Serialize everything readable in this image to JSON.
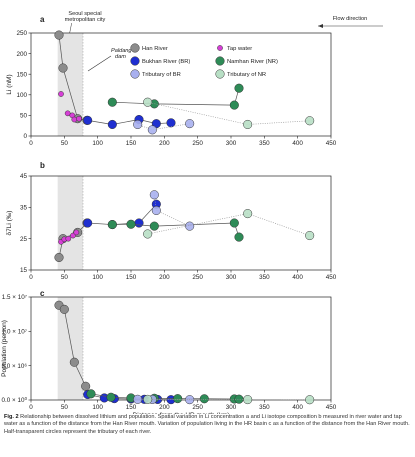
{
  "caption": {
    "fig_label": "Fig. 2",
    "text": "Relationship between dissolved lithium and population. Spatial variation in Li concentration a and Li isotope composition b measured in river water and tap water as a function of the distance from the Han River mouth. Variation of population living in the HR basin c as a function of the distance from the Han River mouth. Half-transparent circles represent the tributary of each river."
  },
  "annotations": {
    "seoul": [
      "Seoul special",
      "metropolitan city"
    ],
    "dam": [
      "Paldang",
      "dam"
    ],
    "flow": "Flow direction"
  },
  "colors": {
    "han": "#8c8c8c",
    "tap": "#d63fd6",
    "bukhan": "#1f2fd0",
    "namhan": "#2e8b57",
    "trib_br": "#a9b0ee",
    "trib_nr": "#b8dfc5",
    "seoul_band": "#e4e4e4"
  },
  "legend": [
    {
      "label": "Han River",
      "color": "#8c8c8c"
    },
    {
      "label": "Tap water",
      "color": "#d63fd6"
    },
    {
      "label": "Bukhan River (BR)",
      "color": "#1f2fd0"
    },
    {
      "label": "Namhan River (NR)",
      "color": "#2e8b57"
    },
    {
      "label": "Tributary of BR",
      "color": "#a9b0ee"
    },
    {
      "label": "Tributary of NR",
      "color": "#b8dfc5"
    }
  ],
  "chart_data": [
    {
      "panel": "a",
      "type": "scatter",
      "xlabel": "",
      "ylabel": "Li (nM)",
      "xlim": [
        0,
        450
      ],
      "ylim": [
        0,
        250
      ],
      "xticks": [
        "0",
        "50",
        "100",
        "150",
        "200",
        "250",
        "300",
        "350",
        "400",
        "450"
      ],
      "yticks": [
        "0",
        "50",
        "100",
        "150",
        "200",
        "250"
      ],
      "band": [
        40,
        78
      ],
      "series": [
        {
          "name": "Han River",
          "line": "solid",
          "color": "#8c8c8c",
          "x": [
            42,
            48,
            70,
            84
          ],
          "y": [
            245,
            165,
            42,
            38
          ]
        },
        {
          "name": "Tap water",
          "line": "none",
          "color": "#d63fd6",
          "x": [
            45,
            55,
            62,
            65,
            72
          ],
          "y": [
            102,
            55,
            50,
            40,
            42
          ]
        },
        {
          "name": "Bukhan River (BR)",
          "line": "solid",
          "color": "#1f2fd0",
          "x": [
            85,
            122,
            162,
            188,
            210
          ],
          "y": [
            38,
            28,
            40,
            30,
            32
          ]
        },
        {
          "name": "Namhan River (NR)",
          "line": "solid",
          "color": "#2e8b57",
          "x": [
            122,
            185,
            305,
            312
          ],
          "y": [
            82,
            78,
            75,
            116
          ]
        },
        {
          "name": "Tributary of BR",
          "line": "dotted",
          "color": "#a9b0ee",
          "x": [
            160,
            182,
            238
          ],
          "y": [
            28,
            15,
            30
          ]
        },
        {
          "name": "Tributary of NR",
          "line": "dotted",
          "color": "#b8dfc5",
          "x": [
            175,
            325,
            418
          ],
          "y": [
            82,
            28,
            37
          ]
        }
      ]
    },
    {
      "panel": "b",
      "type": "scatter",
      "xlabel": "",
      "ylabel": "δ7Li (‰)",
      "xlim": [
        0,
        450
      ],
      "ylim": [
        15,
        45
      ],
      "xticks": [
        "0",
        "50",
        "100",
        "150",
        "200",
        "250",
        "300",
        "350",
        "400",
        "450"
      ],
      "yticks": [
        "15",
        "25",
        "35",
        "45"
      ],
      "band": [
        40,
        78
      ],
      "series": [
        {
          "name": "Han River",
          "line": "solid",
          "color": "#8c8c8c",
          "x": [
            42,
            48,
            70,
            84
          ],
          "y": [
            19,
            25,
            27,
            30
          ]
        },
        {
          "name": "Tap water",
          "line": "none",
          "color": "#d63fd6",
          "x": [
            45,
            50,
            56,
            63,
            68
          ],
          "y": [
            24,
            24.8,
            25,
            26,
            27
          ]
        },
        {
          "name": "Bukhan River (BR)",
          "line": "solid",
          "color": "#1f2fd0",
          "x": [
            85,
            122,
            162,
            188
          ],
          "y": [
            30,
            29.5,
            30,
            36
          ]
        },
        {
          "name": "Namhan River (NR)",
          "line": "solid",
          "color": "#2e8b57",
          "x": [
            122,
            150,
            185,
            305,
            312
          ],
          "y": [
            29.5,
            29.6,
            29,
            30,
            25.5
          ]
        },
        {
          "name": "Tributary of BR",
          "line": "dotted",
          "color": "#a9b0ee",
          "x": [
            185,
            188,
            238
          ],
          "y": [
            39,
            34,
            29
          ]
        },
        {
          "name": "Tributary of NR",
          "line": "dotted",
          "color": "#b8dfc5",
          "x": [
            175,
            325,
            418
          ],
          "y": [
            26.5,
            33,
            26
          ]
        }
      ]
    },
    {
      "panel": "c",
      "type": "line",
      "xlabel": "Distance from the HR mouth (km)",
      "ylabel": "Population (person)",
      "xlim": [
        0,
        450
      ],
      "ylim": [
        0,
        15000000
      ],
      "xticks": [
        "0",
        "50",
        "100",
        "150",
        "200",
        "250",
        "300",
        "350",
        "400",
        "450"
      ],
      "yticks": [
        "0.0 × 10⁰",
        "5.0 × 10⁶",
        "1.0 × 10⁷",
        "1.5 × 10⁷"
      ],
      "band": [
        40,
        78
      ],
      "series": [
        {
          "name": "Han River",
          "line": "solid",
          "color": "#8c8c8c",
          "x": [
            42,
            50,
            65,
            82
          ],
          "y": [
            13800000,
            13200000,
            5500000,
            2000000
          ]
        },
        {
          "name": "Bukhan River (BR)",
          "line": "solid",
          "color": "#1f2fd0",
          "x": [
            85,
            110,
            125,
            150,
            170,
            190,
            210
          ],
          "y": [
            800000,
            300000,
            200000,
            150000,
            100000,
            80000,
            50000
          ]
        },
        {
          "name": "Namhan River (NR)",
          "line": "solid",
          "color": "#2e8b57",
          "x": [
            90,
            120,
            150,
            185,
            220,
            260,
            305,
            312
          ],
          "y": [
            900000,
            400000,
            300000,
            250000,
            200000,
            180000,
            150000,
            120000
          ]
        },
        {
          "name": "Tributary of BR",
          "line": "dotted",
          "color": "#a9b0ee",
          "x": [
            160,
            182,
            238
          ],
          "y": [
            100000,
            80000,
            50000
          ]
        },
        {
          "name": "Tributary of NR",
          "line": "dotted",
          "color": "#b8dfc5",
          "x": [
            175,
            325,
            418
          ],
          "y": [
            90000,
            60000,
            40000
          ]
        }
      ]
    }
  ]
}
